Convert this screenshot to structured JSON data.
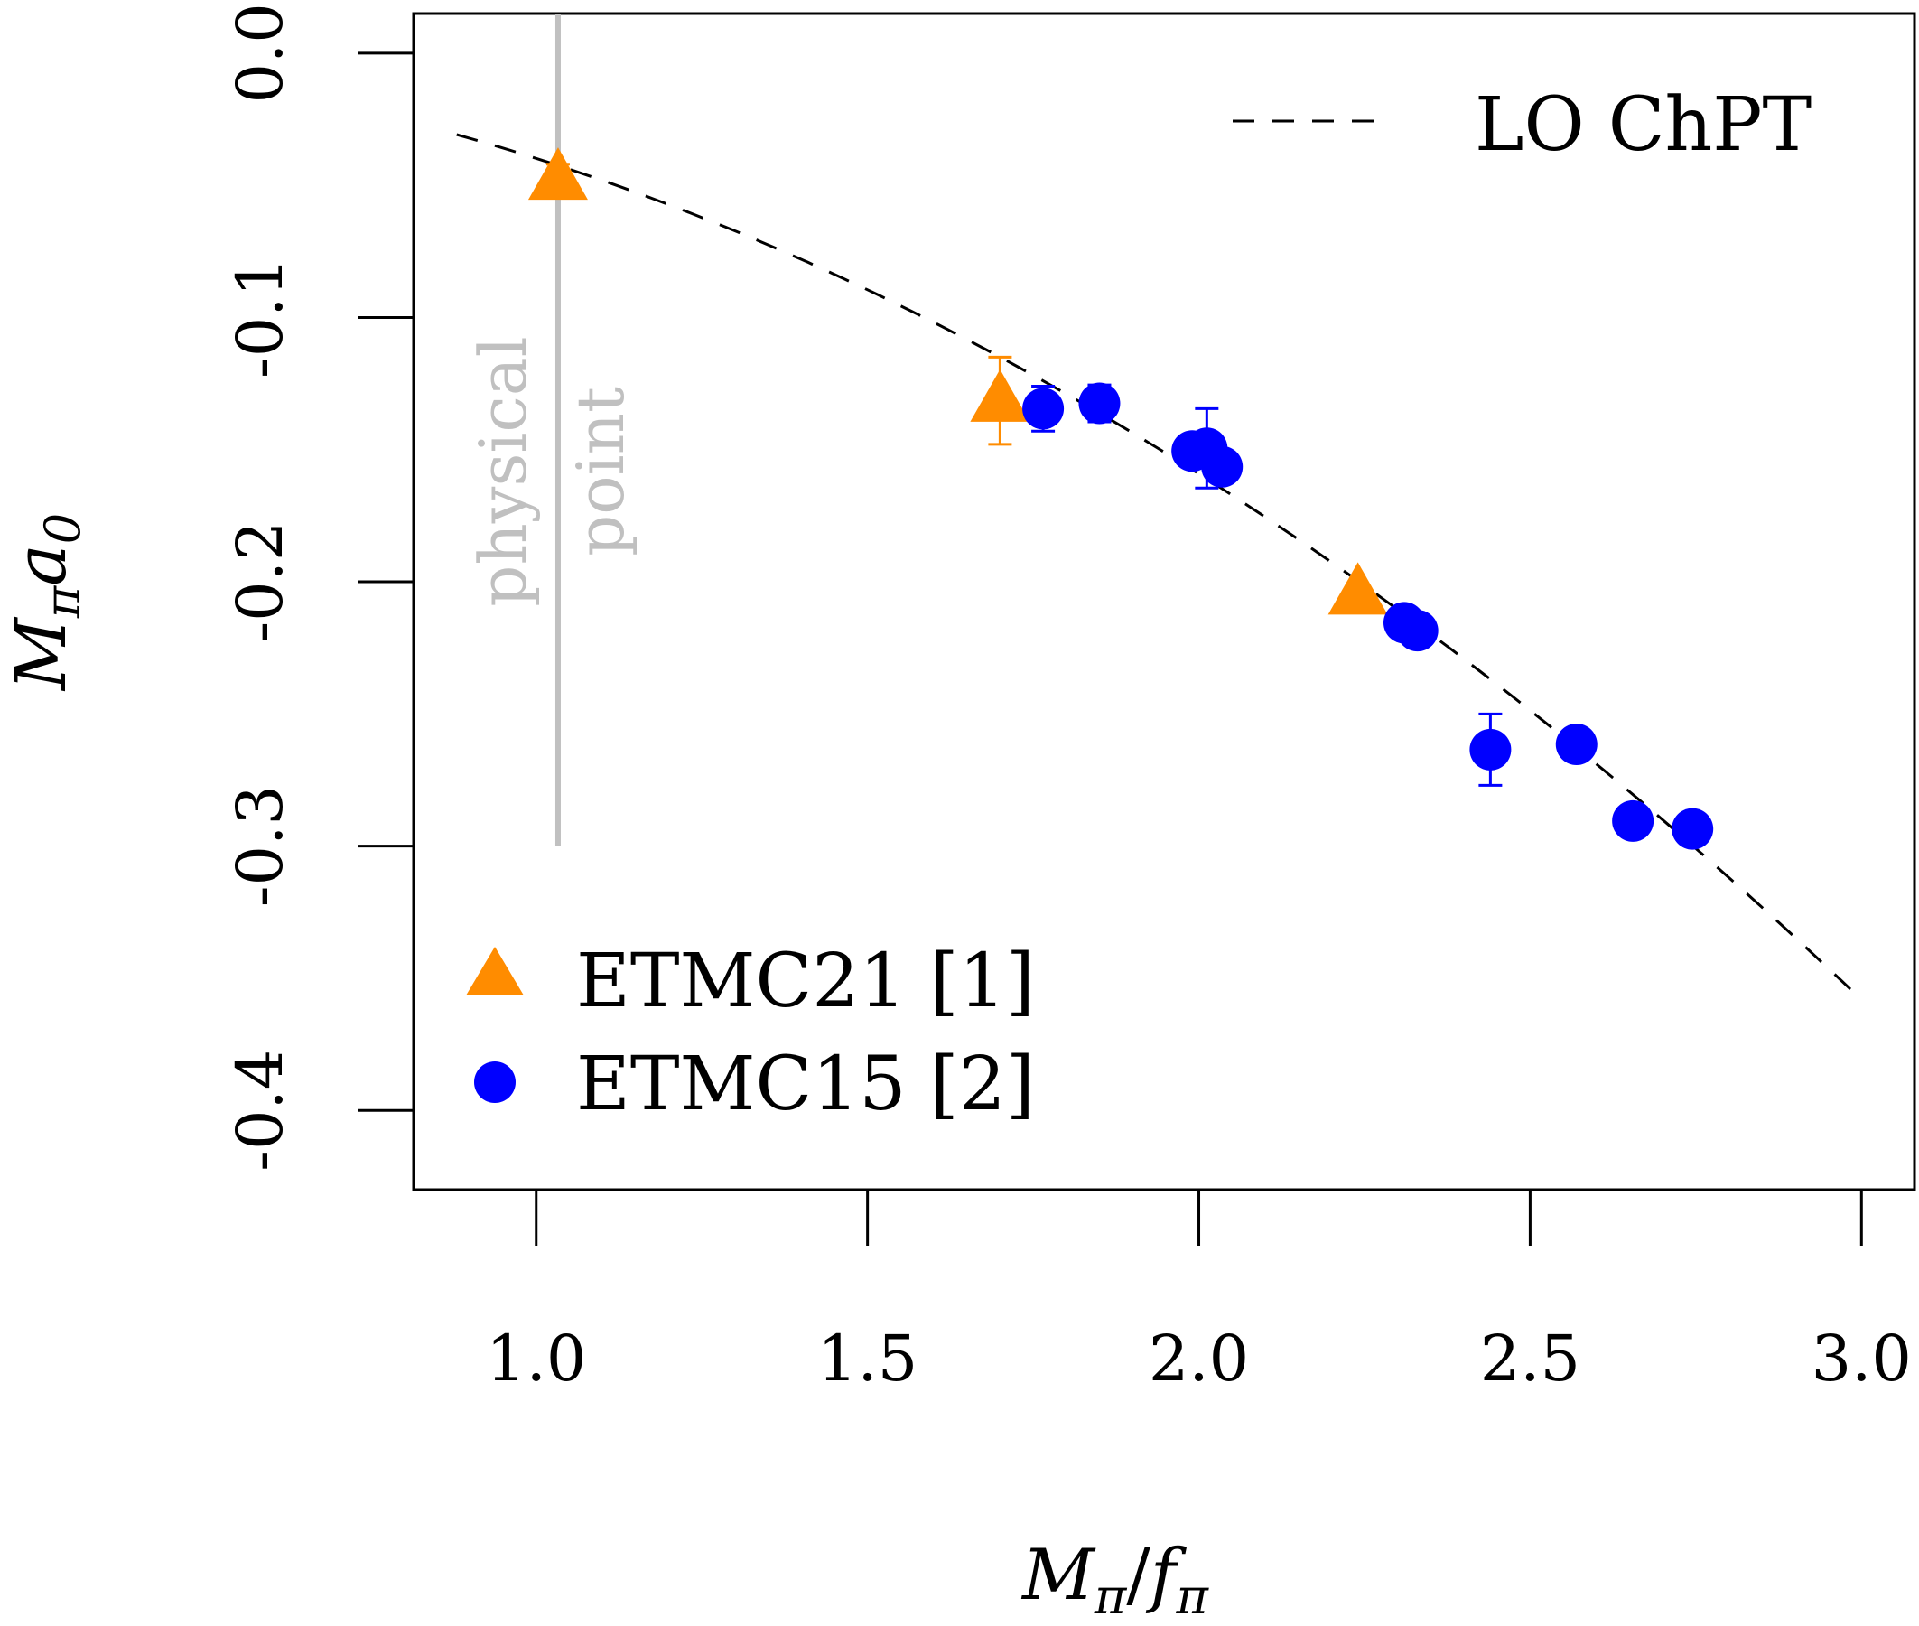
{
  "chart_data": {
    "type": "scatter",
    "xlabel": {
      "main": "M",
      "sub": "π",
      "slash": "/",
      "main2": "f",
      "sub2": "π"
    },
    "ylabel": {
      "main": "M",
      "sub": "π",
      "main2": "a",
      "sub2": "0"
    },
    "xlim": [
      0.815,
      3.08
    ],
    "ylim": [
      -0.43,
      0.015
    ],
    "x_ticks": [
      {
        "value": 1.0,
        "label": "1.0"
      },
      {
        "value": 1.5,
        "label": "1.5"
      },
      {
        "value": 2.0,
        "label": "2.0"
      },
      {
        "value": 2.5,
        "label": "2.5"
      },
      {
        "value": 3.0,
        "label": "3.0"
      }
    ],
    "y_ticks": [
      {
        "value": 0.0,
        "label": "0.0"
      },
      {
        "value": -0.1,
        "label": "-0.1"
      },
      {
        "value": -0.2,
        "label": "-0.2"
      },
      {
        "value": -0.3,
        "label": "-0.3"
      },
      {
        "value": -0.4,
        "label": "-0.4"
      }
    ],
    "grid": false,
    "legend": [
      {
        "label": "LO ChPT",
        "symbol": "dashed-line",
        "placement": "top-right"
      },
      {
        "label": "ETMC21 [1]",
        "symbol": "triangle",
        "color": "#ff8c00",
        "placement": "bottom-left"
      },
      {
        "label": "ETMC15 [2]",
        "symbol": "circle",
        "color": "#0000ff",
        "placement": "bottom-left"
      }
    ],
    "annotation": {
      "x": 1.033,
      "y_range": [
        -0.3,
        0.015
      ],
      "lines": [
        "physical",
        "point"
      ],
      "color": "#c0c0c0"
    },
    "curve": {
      "name": "LO ChPT",
      "formula": "-(M_pi/f_pi)^2 / (8*pi)",
      "x_range": [
        0.88,
        3.0
      ]
    },
    "series": [
      {
        "name": "ETMC21 [1]",
        "marker": "triangle",
        "color": "#ff8c00",
        "points": [
          {
            "x": 1.033,
            "y": -0.0475,
            "err": 0.0055
          },
          {
            "x": 1.7,
            "y": -0.1315,
            "err": 0.0165
          },
          {
            "x": 2.24,
            "y": -0.2045,
            "err": 0.003
          }
        ]
      },
      {
        "name": "ETMC15 [2]",
        "marker": "circle",
        "color": "#0000ff",
        "points": [
          {
            "x": 1.765,
            "y": -0.1345,
            "err": 0.0085
          },
          {
            "x": 1.85,
            "y": -0.1325,
            "err": 0.007
          },
          {
            "x": 1.99,
            "y": -0.1505,
            "err": 0.004
          },
          {
            "x": 2.012,
            "y": -0.1495,
            "err": 0.015
          },
          {
            "x": 2.035,
            "y": -0.1565,
            "err": 0.004
          },
          {
            "x": 2.31,
            "y": -0.2155,
            "err": 0.003
          },
          {
            "x": 2.33,
            "y": -0.2185,
            "err": 0.003
          },
          {
            "x": 2.44,
            "y": -0.2635,
            "err": 0.0135
          },
          {
            "x": 2.57,
            "y": -0.2615,
            "err": 0.003
          },
          {
            "x": 2.655,
            "y": -0.2905,
            "err": 0.003
          },
          {
            "x": 2.745,
            "y": -0.2935,
            "err": 0.003
          }
        ]
      }
    ]
  }
}
